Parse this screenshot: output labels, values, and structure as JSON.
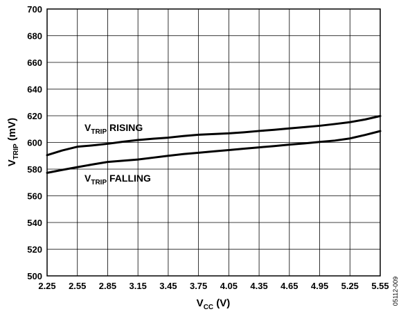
{
  "chart_data": {
    "type": "line",
    "xlabel": {
      "main": "V",
      "sub": "CC",
      "rest": " (V)"
    },
    "ylabel": {
      "main": "V",
      "sub": "TRIP",
      "rest": " (mV)"
    },
    "xlim": [
      2.25,
      5.55
    ],
    "ylim": [
      500,
      700
    ],
    "x_ticks": [
      "2.25",
      "2.55",
      "2.85",
      "3.15",
      "3.45",
      "3.75",
      "4.05",
      "4.35",
      "4.65",
      "4.95",
      "5.25",
      "5.55"
    ],
    "y_ticks": [
      "500",
      "520",
      "540",
      "560",
      "580",
      "600",
      "620",
      "640",
      "660",
      "680",
      "700"
    ],
    "grid": true,
    "series": [
      {
        "name": {
          "main": "V",
          "sub": "TRIP",
          "rest": " RISING"
        },
        "x": [
          2.25,
          2.4,
          2.55,
          2.7,
          2.85,
          3.0,
          3.15,
          3.3,
          3.45,
          3.6,
          3.75,
          3.9,
          4.05,
          4.2,
          4.35,
          4.5,
          4.65,
          4.8,
          4.95,
          5.1,
          5.25,
          5.4,
          5.55
        ],
        "values": [
          590.5,
          594,
          596.8,
          597.8,
          599,
          600.5,
          601.8,
          602.8,
          603.6,
          604.8,
          605.8,
          606.3,
          606.8,
          607.6,
          608.6,
          609.5,
          610.5,
          611.5,
          612.5,
          613.8,
          615.2,
          617.2,
          619.8
        ]
      },
      {
        "name": {
          "main": "V",
          "sub": "TRIP",
          "rest": " FALLING"
        },
        "x": [
          2.25,
          2.4,
          2.55,
          2.7,
          2.85,
          3.0,
          3.15,
          3.3,
          3.45,
          3.6,
          3.75,
          3.9,
          4.05,
          4.2,
          4.35,
          4.5,
          4.65,
          4.8,
          4.95,
          5.1,
          5.25,
          5.4,
          5.55
        ],
        "values": [
          577.2,
          579.4,
          581.5,
          583.5,
          585.4,
          586.3,
          587.2,
          588.6,
          590,
          591.3,
          592.3,
          593.3,
          594.3,
          595.3,
          596.3,
          597.3,
          598.4,
          599.3,
          600.4,
          601.4,
          603,
          605.6,
          608.5
        ]
      }
    ]
  },
  "figure_code": "05112-009"
}
